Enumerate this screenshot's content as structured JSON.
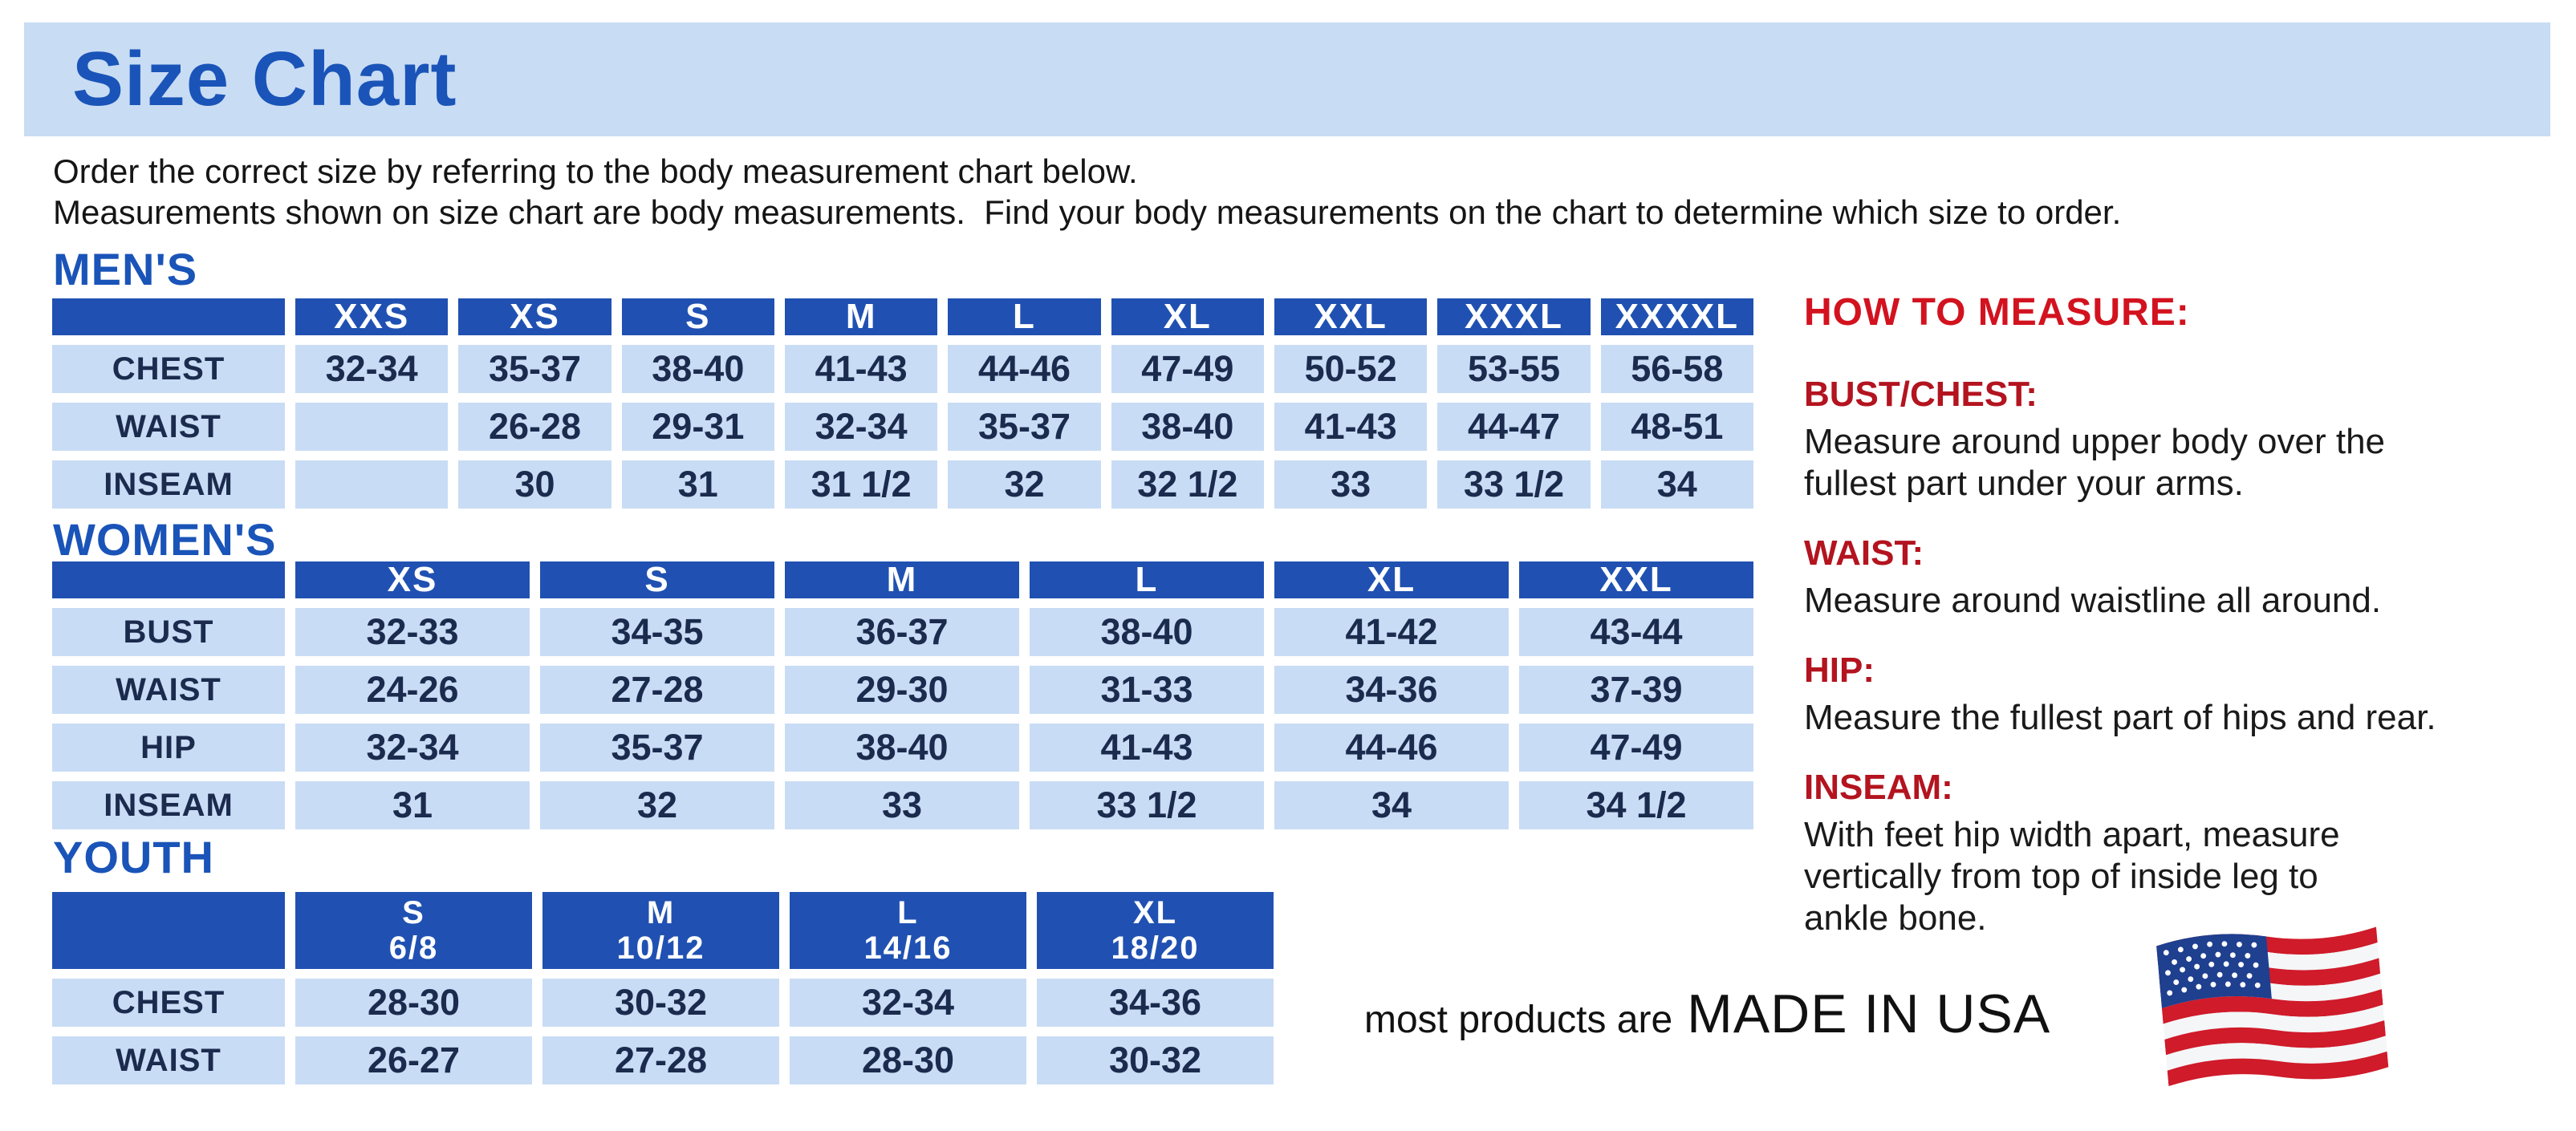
{
  "page": {
    "title": "Size Chart",
    "intro": "Order the correct size by referring to the body measurement chart below.\nMeasurements shown on size chart are body measurements.  Find your body measurements on the chart to determine which size to order."
  },
  "colors": {
    "banner_bg": "#c8dcf4",
    "heading_blue": "#1a54b8",
    "table_header_bg": "#2051b2",
    "table_cell_bg": "#c9dcf5",
    "cell_text": "#1b2b4e",
    "red_heading": "#d2131f"
  },
  "tables": [
    {
      "heading": "MEN'S",
      "columns": [
        "XXS",
        "XS",
        "S",
        "M",
        "L",
        "XL",
        "XXL",
        "XXXL",
        "XXXXL"
      ],
      "rows": [
        {
          "label": "CHEST",
          "cells": [
            "32-34",
            "35-37",
            "38-40",
            "41-43",
            "44-46",
            "47-49",
            "50-52",
            "53-55",
            "56-58"
          ]
        },
        {
          "label": "WAIST",
          "cells": [
            "",
            "26-28",
            "29-31",
            "32-34",
            "35-37",
            "38-40",
            "41-43",
            "44-47",
            "48-51"
          ]
        },
        {
          "label": "INSEAM",
          "cells": [
            "",
            "30",
            "31",
            "31 1/2",
            "32",
            "32 1/2",
            "33",
            "33 1/2",
            "34"
          ]
        }
      ]
    },
    {
      "heading": "WOMEN'S",
      "columns": [
        "XS",
        "S",
        "M",
        "L",
        "XL",
        "XXL"
      ],
      "rows": [
        {
          "label": "BUST",
          "cells": [
            "32-33",
            "34-35",
            "36-37",
            "38-40",
            "41-42",
            "43-44"
          ]
        },
        {
          "label": "WAIST",
          "cells": [
            "24-26",
            "27-28",
            "29-30",
            "31-33",
            "34-36",
            "37-39"
          ]
        },
        {
          "label": "HIP",
          "cells": [
            "32-34",
            "35-37",
            "38-40",
            "41-43",
            "44-46",
            "47-49"
          ]
        },
        {
          "label": "INSEAM",
          "cells": [
            "31",
            "32",
            "33",
            "33 1/2",
            "34",
            "34 1/2"
          ]
        }
      ]
    },
    {
      "heading": "YOUTH",
      "columns": [
        {
          "label": "S",
          "sub": "6/8"
        },
        {
          "label": "M",
          "sub": "10/12"
        },
        {
          "label": "L",
          "sub": "14/16"
        },
        {
          "label": "XL",
          "sub": "18/20"
        }
      ],
      "rows": [
        {
          "label": "CHEST",
          "cells": [
            "28-30",
            "30-32",
            "32-34",
            "34-36"
          ]
        },
        {
          "label": "WAIST",
          "cells": [
            "26-27",
            "27-28",
            "28-30",
            "30-32"
          ]
        }
      ]
    }
  ],
  "measure": {
    "title": "HOW TO MEASURE:",
    "sections": [
      {
        "label": "BUST/CHEST:",
        "text": "Measure around upper body over the\nfullest part under your arms."
      },
      {
        "label": "WAIST:",
        "text": "Measure around waistline all around."
      },
      {
        "label": "HIP:",
        "text": "Measure the fullest part of hips and rear."
      },
      {
        "label": "INSEAM:",
        "text": "With feet hip width apart, measure\nvertically from top of inside leg to\nankle bone."
      }
    ]
  },
  "footer": {
    "prefix": "most products are",
    "emphasis": "MADE IN USA",
    "flag_icon": "usa-flag-icon"
  }
}
